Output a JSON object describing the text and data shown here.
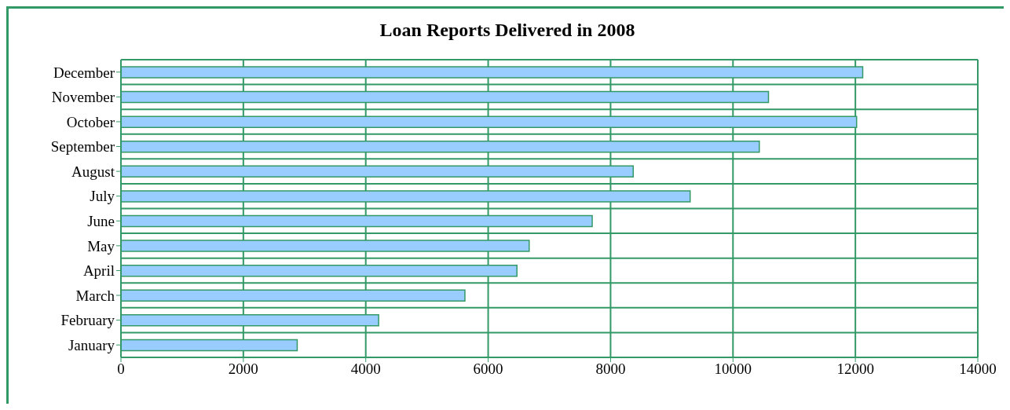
{
  "chart_data": {
    "type": "bar",
    "orientation": "horizontal",
    "title": "Loan Reports Delivered in 2008",
    "categories": [
      "December",
      "November",
      "October",
      "September",
      "August",
      "July",
      "June",
      "May",
      "April",
      "March",
      "February",
      "January"
    ],
    "values": [
      12120,
      10580,
      12020,
      10430,
      8370,
      9300,
      7700,
      6670,
      6470,
      5620,
      4210,
      2880
    ],
    "color": "#99ccff",
    "xlim": [
      0,
      14000
    ],
    "xticks": [
      0,
      2000,
      4000,
      6000,
      8000,
      10000,
      12000,
      14000
    ],
    "grid": true,
    "legend": false
  }
}
